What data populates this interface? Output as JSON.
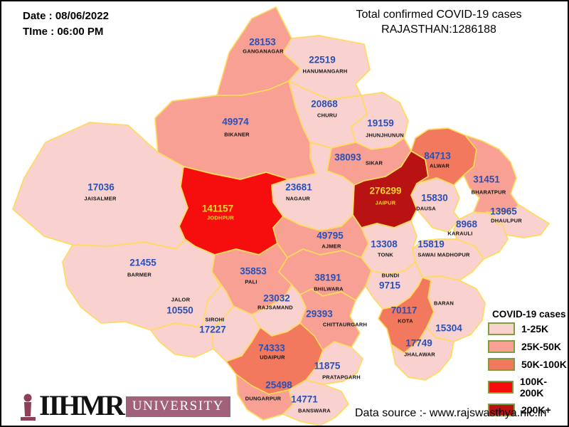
{
  "header": {
    "date_label": "Date : 08/06/2022",
    "time_label": "TIme : 06:00 PM",
    "title_line1": "Total confirmed COVID-19 cases",
    "title_line2": "RAJASTHAN:1286188"
  },
  "legend": {
    "title": "COVID-19 cases",
    "swatch_border_color": "#7F9E40",
    "items": [
      {
        "range": "1-25K",
        "color": "#F9D2D0"
      },
      {
        "range": "25K-50K",
        "color": "#F7A093"
      },
      {
        "range": "50K-100K",
        "color": "#F3795E"
      },
      {
        "range": "100K-200K",
        "color": "#F60D0D"
      },
      {
        "range": "200K+",
        "color": "#B81212"
      }
    ]
  },
  "map": {
    "state": "RAJASTHAN",
    "border_color": "#FFDA5C",
    "label_color_default": "#2A4FB5",
    "label_color_highlight": "#FFD42E",
    "districts": [
      {
        "id": "ganganagar",
        "name": "GANGANAGAR",
        "cases": 28153,
        "range": "25K-50K"
      },
      {
        "id": "hanumangarh",
        "name": "HANUMANGARH",
        "cases": 22519,
        "range": "1-25K"
      },
      {
        "id": "bikaner",
        "name": "BIKANER",
        "cases": 49974,
        "range": "25K-50K"
      },
      {
        "id": "churu",
        "name": "CHURU",
        "cases": 20868,
        "range": "1-25K"
      },
      {
        "id": "jhunjhunun",
        "name": "JHUNJHUNUN",
        "cases": 19159,
        "range": "1-25K"
      },
      {
        "id": "sikar",
        "name": "SIKAR",
        "cases": 38093,
        "range": "25K-50K"
      },
      {
        "id": "jaisalmer",
        "name": "JAISALMER",
        "cases": 17036,
        "range": "1-25K"
      },
      {
        "id": "jodhpur",
        "name": "JODHPUR",
        "cases": 141157,
        "range": "100K-200K"
      },
      {
        "id": "nagaur",
        "name": "NAGAUR",
        "cases": 23681,
        "range": "1-25K"
      },
      {
        "id": "jaipur",
        "name": "JAIPUR",
        "cases": 276299,
        "range": "200K+"
      },
      {
        "id": "alwar",
        "name": "ALWAR",
        "cases": 84713,
        "range": "50K-100K"
      },
      {
        "id": "bharatpur",
        "name": "BHARATPUR",
        "cases": 31451,
        "range": "25K-50K"
      },
      {
        "id": "dausa",
        "name": "DAUSA",
        "cases": 15830,
        "range": "1-25K"
      },
      {
        "id": "dhaulpur",
        "name": "DHAULPUR",
        "cases": 13965,
        "range": "1-25K"
      },
      {
        "id": "karauli",
        "name": "KARAULI",
        "cases": 8968,
        "range": "1-25K"
      },
      {
        "id": "sawai_madhopur",
        "name": "SAWAI MADHOPUR",
        "cases": 15819,
        "range": "1-25K"
      },
      {
        "id": "ajmer",
        "name": "AJMER",
        "cases": 49795,
        "range": "25K-50K"
      },
      {
        "id": "tonk",
        "name": "TONK",
        "cases": 13308,
        "range": "1-25K"
      },
      {
        "id": "bundi",
        "name": "BUNDI",
        "cases": 9715,
        "range": "1-25K"
      },
      {
        "id": "bhilwara",
        "name": "BHILWARA",
        "cases": 38191,
        "range": "25K-50K"
      },
      {
        "id": "barmer",
        "name": "BARMER",
        "cases": 21455,
        "range": "1-25K"
      },
      {
        "id": "pali",
        "name": "PALI",
        "cases": 35853,
        "range": "25K-50K"
      },
      {
        "id": "jalor",
        "name": "JALOR",
        "cases": 10550,
        "range": "1-25K"
      },
      {
        "id": "sirohi",
        "name": "SIROHI",
        "cases": 17227,
        "range": "1-25K"
      },
      {
        "id": "rajsamand",
        "name": "RAJSAMAND",
        "cases": 23032,
        "range": "1-25K"
      },
      {
        "id": "chittaurgarh",
        "name": "CHITTAURGARH",
        "cases": 29393,
        "range": "25K-50K"
      },
      {
        "id": "udaipur",
        "name": "UDAIPUR",
        "cases": 74333,
        "range": "50K-100K"
      },
      {
        "id": "dungarpur",
        "name": "DUNGARPUR",
        "cases": 25498,
        "range": "25K-50K"
      },
      {
        "id": "banswara",
        "name": "BANSWARA",
        "cases": 14771,
        "range": "1-25K"
      },
      {
        "id": "pratapgarh",
        "name": "PRATAPGARH",
        "cases": 11875,
        "range": "1-25K"
      },
      {
        "id": "kota",
        "name": "KOTA",
        "cases": 70117,
        "range": "50K-100K"
      },
      {
        "id": "baran",
        "name": "BARAN",
        "cases": 15304,
        "range": "1-25K"
      },
      {
        "id": "jhalawar",
        "name": "JHALAWAR",
        "cases": 17749,
        "range": "1-25K"
      }
    ]
  },
  "footer": {
    "source": "Data source :- www.rajswasthya.nic.in",
    "logo_text": "IIHMR",
    "logo_suffix": "UNIVERSITY"
  }
}
